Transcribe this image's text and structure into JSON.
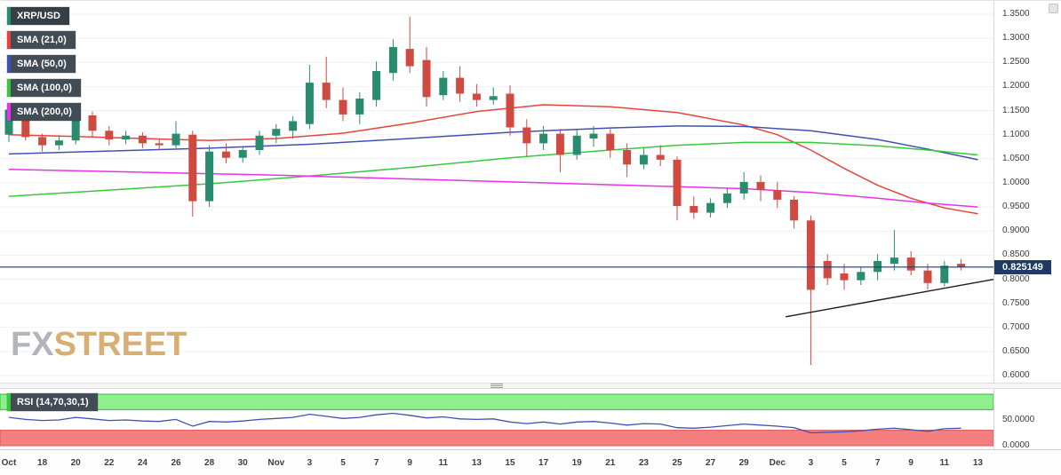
{
  "price_badge": "0.825149",
  "watermark": {
    "fx": "FX",
    "street": "STREET"
  },
  "legend": {
    "items": [
      {
        "label": "XRP/USD",
        "color": "#2a8c6e"
      },
      {
        "label": "SMA (21,0)",
        "color": "#e8433c"
      },
      {
        "label": "SMA (50,0)",
        "color": "#4150b5"
      },
      {
        "label": "SMA (100,0)",
        "color": "#35c93c"
      },
      {
        "label": "SMA (200,0)",
        "color": "#ea30ea"
      }
    ]
  },
  "chart_data": {
    "type": "candlestick",
    "symbol": "XRP/USD",
    "current_price": 0.825149,
    "colors": {
      "up": "#2a8c6e",
      "down": "#cf4a41",
      "price_line": "#1f3a63",
      "trendline": "#1b1b1b",
      "grid": "#f1f1f2"
    },
    "y_axis": {
      "min": 0.6,
      "max": 1.35,
      "tick_step": 0.05,
      "ticks": [
        "1.3500",
        "1.3000",
        "1.2500",
        "1.2000",
        "1.1500",
        "1.1000",
        "1.0500",
        "1.0000",
        "0.9500",
        "0.9000",
        "0.8500",
        "0.8000",
        "0.7500",
        "0.7000",
        "0.6500",
        "0.6000"
      ]
    },
    "x_axis": {
      "days_per_tick": 2,
      "ticks": [
        "Oct",
        "18",
        "20",
        "22",
        "24",
        "26",
        "28",
        "30",
        "Nov",
        "3",
        "5",
        "7",
        "9",
        "11",
        "13",
        "15",
        "17",
        "19",
        "21",
        "23",
        "25",
        "27",
        "29",
        "Dec",
        "3",
        "5",
        "7",
        "9",
        "11",
        "13"
      ]
    },
    "candles": [
      {
        "d": "Oct 16",
        "o": 1.1,
        "h": 1.16,
        "l": 1.085,
        "c": 1.152
      },
      {
        "d": "Oct 17",
        "o": 1.15,
        "h": 1.158,
        "l": 1.088,
        "c": 1.095
      },
      {
        "d": "Oct 18",
        "o": 1.095,
        "h": 1.102,
        "l": 1.065,
        "c": 1.078
      },
      {
        "d": "Oct 19",
        "o": 1.078,
        "h": 1.098,
        "l": 1.068,
        "c": 1.088
      },
      {
        "d": "Oct 20",
        "o": 1.088,
        "h": 1.152,
        "l": 1.08,
        "c": 1.14
      },
      {
        "d": "Oct 21",
        "o": 1.14,
        "h": 1.148,
        "l": 1.095,
        "c": 1.108
      },
      {
        "d": "Oct 22",
        "o": 1.108,
        "h": 1.118,
        "l": 1.078,
        "c": 1.09
      },
      {
        "d": "Oct 23",
        "o": 1.09,
        "h": 1.108,
        "l": 1.08,
        "c": 1.098
      },
      {
        "d": "Oct 24",
        "o": 1.098,
        "h": 1.105,
        "l": 1.072,
        "c": 1.082
      },
      {
        "d": "Oct 25",
        "o": 1.082,
        "h": 1.092,
        "l": 1.068,
        "c": 1.078
      },
      {
        "d": "Oct 26",
        "o": 1.078,
        "h": 1.128,
        "l": 1.072,
        "c": 1.102
      },
      {
        "d": "Oct 27",
        "o": 1.1,
        "h": 1.108,
        "l": 0.93,
        "c": 0.962
      },
      {
        "d": "Oct 28",
        "o": 0.962,
        "h": 1.078,
        "l": 0.95,
        "c": 1.065
      },
      {
        "d": "Oct 29",
        "o": 1.065,
        "h": 1.082,
        "l": 1.04,
        "c": 1.052
      },
      {
        "d": "Oct 30",
        "o": 1.052,
        "h": 1.075,
        "l": 1.042,
        "c": 1.068
      },
      {
        "d": "Oct 31",
        "o": 1.068,
        "h": 1.108,
        "l": 1.058,
        "c": 1.098
      },
      {
        "d": "Nov 1",
        "o": 1.098,
        "h": 1.122,
        "l": 1.082,
        "c": 1.112
      },
      {
        "d": "Nov 2",
        "o": 1.108,
        "h": 1.138,
        "l": 1.092,
        "c": 1.128
      },
      {
        "d": "Nov 3",
        "o": 1.122,
        "h": 1.245,
        "l": 1.112,
        "c": 1.208
      },
      {
        "d": "Nov 4",
        "o": 1.208,
        "h": 1.262,
        "l": 1.155,
        "c": 1.172
      },
      {
        "d": "Nov 5",
        "o": 1.172,
        "h": 1.198,
        "l": 1.128,
        "c": 1.142
      },
      {
        "d": "Nov 6",
        "o": 1.142,
        "h": 1.188,
        "l": 1.122,
        "c": 1.175
      },
      {
        "d": "Nov 7",
        "o": 1.172,
        "h": 1.252,
        "l": 1.158,
        "c": 1.232
      },
      {
        "d": "Nov 8",
        "o": 1.228,
        "h": 1.298,
        "l": 1.212,
        "c": 1.282
      },
      {
        "d": "Nov 9",
        "o": 1.278,
        "h": 1.345,
        "l": 1.228,
        "c": 1.242
      },
      {
        "d": "Nov 10",
        "o": 1.255,
        "h": 1.282,
        "l": 1.158,
        "c": 1.178
      },
      {
        "d": "Nov 11",
        "o": 1.182,
        "h": 1.232,
        "l": 1.172,
        "c": 1.218
      },
      {
        "d": "Nov 12",
        "o": 1.218,
        "h": 1.242,
        "l": 1.168,
        "c": 1.185
      },
      {
        "d": "Nov 13",
        "o": 1.185,
        "h": 1.205,
        "l": 1.158,
        "c": 1.172
      },
      {
        "d": "Nov 14",
        "o": 1.172,
        "h": 1.198,
        "l": 1.162,
        "c": 1.18
      },
      {
        "d": "Nov 15",
        "o": 1.185,
        "h": 1.202,
        "l": 1.098,
        "c": 1.115
      },
      {
        "d": "Nov 16",
        "o": 1.115,
        "h": 1.132,
        "l": 1.055,
        "c": 1.082
      },
      {
        "d": "Nov 17",
        "o": 1.082,
        "h": 1.118,
        "l": 1.068,
        "c": 1.102
      },
      {
        "d": "Nov 18",
        "o": 1.102,
        "h": 1.112,
        "l": 1.022,
        "c": 1.058
      },
      {
        "d": "Nov 19",
        "o": 1.058,
        "h": 1.112,
        "l": 1.048,
        "c": 1.098
      },
      {
        "d": "Nov 20",
        "o": 1.092,
        "h": 1.118,
        "l": 1.075,
        "c": 1.102
      },
      {
        "d": "Nov 21",
        "o": 1.102,
        "h": 1.112,
        "l": 1.052,
        "c": 1.068
      },
      {
        "d": "Nov 22",
        "o": 1.068,
        "h": 1.082,
        "l": 1.012,
        "c": 1.038
      },
      {
        "d": "Nov 23",
        "o": 1.038,
        "h": 1.072,
        "l": 1.028,
        "c": 1.058
      },
      {
        "d": "Nov 24",
        "o": 1.058,
        "h": 1.078,
        "l": 1.035,
        "c": 1.048
      },
      {
        "d": "Nov 25",
        "o": 1.048,
        "h": 1.055,
        "l": 0.922,
        "c": 0.952
      },
      {
        "d": "Nov 26",
        "o": 0.952,
        "h": 0.972,
        "l": 0.925,
        "c": 0.938
      },
      {
        "d": "Nov 27",
        "o": 0.938,
        "h": 0.968,
        "l": 0.928,
        "c": 0.958
      },
      {
        "d": "Nov 28",
        "o": 0.958,
        "h": 0.988,
        "l": 0.948,
        "c": 0.978
      },
      {
        "d": "Nov 29",
        "o": 0.978,
        "h": 1.022,
        "l": 0.965,
        "c": 1.002
      },
      {
        "d": "Nov 30",
        "o": 1.002,
        "h": 1.015,
        "l": 0.962,
        "c": 0.985
      },
      {
        "d": "Dec 1",
        "o": 0.985,
        "h": 1.002,
        "l": 0.948,
        "c": 0.965
      },
      {
        "d": "Dec 2",
        "o": 0.965,
        "h": 0.972,
        "l": 0.905,
        "c": 0.922
      },
      {
        "d": "Dec 3",
        "o": 0.922,
        "h": 0.932,
        "l": 0.622,
        "c": 0.778
      },
      {
        "d": "Dec 4",
        "o": 0.838,
        "h": 0.852,
        "l": 0.788,
        "c": 0.802
      },
      {
        "d": "Dec 5",
        "o": 0.812,
        "h": 0.832,
        "l": 0.778,
        "c": 0.798
      },
      {
        "d": "Dec 6",
        "o": 0.798,
        "h": 0.825,
        "l": 0.788,
        "c": 0.815
      },
      {
        "d": "Dec 7",
        "o": 0.815,
        "h": 0.852,
        "l": 0.798,
        "c": 0.838
      },
      {
        "d": "Dec 8",
        "o": 0.832,
        "h": 0.902,
        "l": 0.818,
        "c": 0.845
      },
      {
        "d": "Dec 9",
        "o": 0.845,
        "h": 0.858,
        "l": 0.808,
        "c": 0.818
      },
      {
        "d": "Dec 10",
        "o": 0.818,
        "h": 0.832,
        "l": 0.778,
        "c": 0.792
      },
      {
        "d": "Dec 11",
        "o": 0.792,
        "h": 0.838,
        "l": 0.785,
        "c": 0.828
      },
      {
        "d": "Dec 12",
        "o": 0.832,
        "h": 0.842,
        "l": 0.818,
        "c": 0.825
      }
    ],
    "sma_series": [
      {
        "id": "sma-21",
        "name": "SMA (21,0)",
        "color": "#e8433c",
        "points": [
          [
            0,
            1.1
          ],
          [
            4,
            1.096
          ],
          [
            8,
            1.092
          ],
          [
            12,
            1.088
          ],
          [
            16,
            1.092
          ],
          [
            20,
            1.103
          ],
          [
            24,
            1.124
          ],
          [
            28,
            1.148
          ],
          [
            32,
            1.162
          ],
          [
            36,
            1.158
          ],
          [
            40,
            1.146
          ],
          [
            44,
            1.12
          ],
          [
            46,
            1.1
          ],
          [
            48,
            1.068
          ],
          [
            50,
            1.03
          ],
          [
            52,
            0.995
          ],
          [
            54,
            0.968
          ],
          [
            56,
            0.948
          ],
          [
            58,
            0.936
          ]
        ]
      },
      {
        "id": "sma-50",
        "name": "SMA (50,0)",
        "color": "#4150b5",
        "points": [
          [
            0,
            1.06
          ],
          [
            6,
            1.066
          ],
          [
            12,
            1.072
          ],
          [
            18,
            1.08
          ],
          [
            24,
            1.092
          ],
          [
            30,
            1.105
          ],
          [
            36,
            1.114
          ],
          [
            40,
            1.118
          ],
          [
            44,
            1.117
          ],
          [
            48,
            1.108
          ],
          [
            52,
            1.09
          ],
          [
            55,
            1.07
          ],
          [
            58,
            1.048
          ]
        ]
      },
      {
        "id": "sma-100",
        "name": "SMA (100,0)",
        "color": "#35c93c",
        "points": [
          [
            0,
            0.972
          ],
          [
            6,
            0.985
          ],
          [
            12,
            0.998
          ],
          [
            18,
            1.014
          ],
          [
            24,
            1.032
          ],
          [
            30,
            1.052
          ],
          [
            36,
            1.068
          ],
          [
            40,
            1.078
          ],
          [
            44,
            1.084
          ],
          [
            48,
            1.084
          ],
          [
            52,
            1.077
          ],
          [
            55,
            1.068
          ],
          [
            58,
            1.058
          ]
        ]
      },
      {
        "id": "sma-200",
        "name": "SMA (200,0)",
        "color": "#ea30ea",
        "points": [
          [
            0,
            1.028
          ],
          [
            8,
            1.022
          ],
          [
            16,
            1.016
          ],
          [
            24,
            1.008
          ],
          [
            32,
            1.0
          ],
          [
            40,
            0.992
          ],
          [
            44,
            0.988
          ],
          [
            48,
            0.98
          ],
          [
            52,
            0.968
          ],
          [
            55,
            0.958
          ],
          [
            58,
            0.95
          ]
        ]
      }
    ],
    "trendline": {
      "from": [
        46.5,
        0.722
      ],
      "to": [
        59,
        0.8
      ]
    },
    "rsi": {
      "label": "RSI (14,70,30,1)",
      "badge_stripe": "#35c93c",
      "overbought": 70,
      "oversold": 30,
      "ticks": [
        {
          "label": "50.0000",
          "value": 50
        },
        {
          "label": "0.0000",
          "value": 0
        }
      ],
      "colors": {
        "line": "#3f51b5",
        "overbought_fill": "#8df08d",
        "overbought_edge": "#3cb83c",
        "oversold_fill": "#f57f7f",
        "oversold_edge": "#e05555"
      },
      "values": [
        55,
        51,
        49,
        50,
        55,
        52,
        49,
        50,
        48,
        47,
        51,
        38,
        47,
        46,
        48,
        51,
        53,
        55,
        61,
        57,
        53,
        55,
        60,
        63,
        59,
        54,
        56,
        52,
        51,
        52,
        46,
        43,
        46,
        42,
        46,
        47,
        44,
        40,
        43,
        42,
        35,
        34,
        36,
        39,
        42,
        40,
        38,
        35,
        25,
        26,
        27,
        29,
        32,
        34,
        31,
        28,
        33,
        34
      ]
    }
  }
}
